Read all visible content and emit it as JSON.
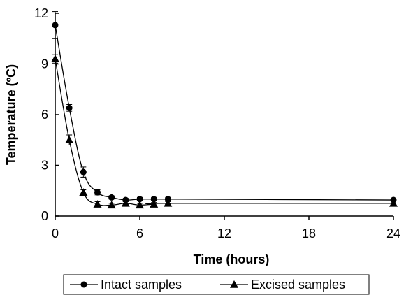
{
  "chart_data": {
    "type": "line",
    "xlabel": "Time (hours)",
    "ylabel": "Temperature (ºC)",
    "xlim": [
      0,
      24
    ],
    "ylim": [
      0,
      12
    ],
    "x_ticks": [
      "0",
      "6",
      "12",
      "18",
      "24"
    ],
    "y_ticks": [
      "0",
      "3",
      "6",
      "9",
      "12"
    ],
    "grid": false,
    "legend_position": "bottom",
    "series": [
      {
        "name": "Intact samples",
        "marker": "circle",
        "color": "#000000",
        "x": [
          0,
          1,
          2,
          3,
          4,
          5,
          6,
          7,
          8,
          24
        ],
        "y": [
          11.3,
          6.4,
          2.6,
          1.4,
          1.1,
          0.95,
          1.0,
          1.0,
          1.0,
          0.95
        ],
        "error": [
          0.8,
          0.2,
          0.3,
          0.15,
          0.1,
          0.1,
          0.1,
          0.1,
          0.1,
          0.1
        ]
      },
      {
        "name": "Excised samples",
        "marker": "triangle",
        "color": "#000000",
        "x": [
          0,
          1,
          2,
          3,
          4,
          5,
          6,
          7,
          8,
          24
        ],
        "y": [
          9.3,
          4.5,
          1.4,
          0.7,
          0.65,
          0.75,
          0.65,
          0.7,
          0.75,
          0.75
        ],
        "error": [
          0.25,
          0.3,
          0.15,
          0.15,
          0.1,
          0.1,
          0.1,
          0.1,
          0.1,
          0.1
        ]
      }
    ]
  }
}
